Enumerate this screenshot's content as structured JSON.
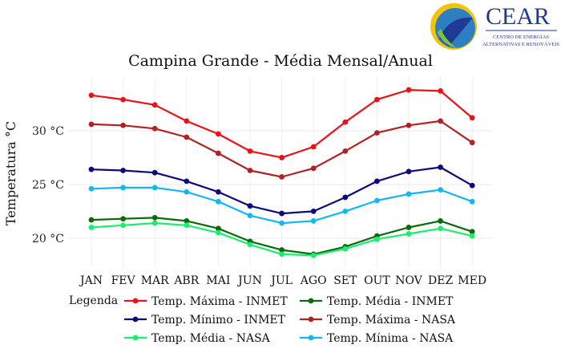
{
  "logo": {
    "name": "CEAR",
    "line1": "CENTRO DE ENERGIAS",
    "line2": "ALTERNATIVAS E RENOVÁVEIS",
    "colors": [
      "#1f3a93",
      "#2e7fc1",
      "#f2c40f",
      "#7cc242"
    ]
  },
  "chart_data": {
    "type": "line",
    "title": "Campina Grande - Média Mensal/Anual",
    "xlabel": "",
    "ylabel": "Temperatura °C",
    "categories": [
      "JAN",
      "FEV",
      "MAR",
      "ABR",
      "MAI",
      "JUN",
      "JUL",
      "AGO",
      "SET",
      "OUT",
      "NOV",
      "DEZ",
      "MED"
    ],
    "yticks": [
      {
        "value": 20,
        "label": "20 °C"
      },
      {
        "value": 25,
        "label": "25 °C"
      },
      {
        "value": 30,
        "label": "30 °C"
      }
    ],
    "ylim": [
      17.3,
      35.0
    ],
    "grid": true,
    "legend_title": "Legenda",
    "legend_position": "bottom",
    "series": [
      {
        "name": "Temp. Máxima - INMET",
        "color": "#e8131a",
        "values": [
          33.3,
          32.9,
          32.4,
          30.9,
          29.7,
          28.1,
          27.5,
          28.5,
          30.8,
          32.9,
          33.8,
          33.7,
          31.2
        ]
      },
      {
        "name": "Temp. Média - INMET",
        "color": "#0b6b0b",
        "values": [
          21.7,
          21.8,
          21.9,
          21.6,
          20.9,
          19.7,
          18.9,
          18.5,
          19.2,
          20.2,
          21.0,
          21.6,
          20.6
        ]
      },
      {
        "name": "Temp. Mínimo - INMET",
        "color": "#0b0b7a",
        "values": [
          26.4,
          26.3,
          26.1,
          25.3,
          24.3,
          23.0,
          22.3,
          22.5,
          23.8,
          25.3,
          26.2,
          26.6,
          24.9
        ]
      },
      {
        "name": "Temp. Máxima - NASA",
        "color": "#b22222",
        "values": [
          30.6,
          30.5,
          30.2,
          29.4,
          27.9,
          26.3,
          25.7,
          26.5,
          28.1,
          29.8,
          30.5,
          30.9,
          28.9
        ]
      },
      {
        "name": "Temp. Média - NASA",
        "color": "#1aee6e",
        "values": [
          21.0,
          21.2,
          21.4,
          21.2,
          20.5,
          19.4,
          18.5,
          18.4,
          19.0,
          19.9,
          20.4,
          20.9,
          20.2
        ]
      },
      {
        "name": "Temp. Mínima - NASA",
        "color": "#13b8f0",
        "values": [
          24.6,
          24.7,
          24.7,
          24.3,
          23.4,
          22.1,
          21.4,
          21.6,
          22.5,
          23.5,
          24.1,
          24.5,
          23.4
        ]
      }
    ]
  }
}
